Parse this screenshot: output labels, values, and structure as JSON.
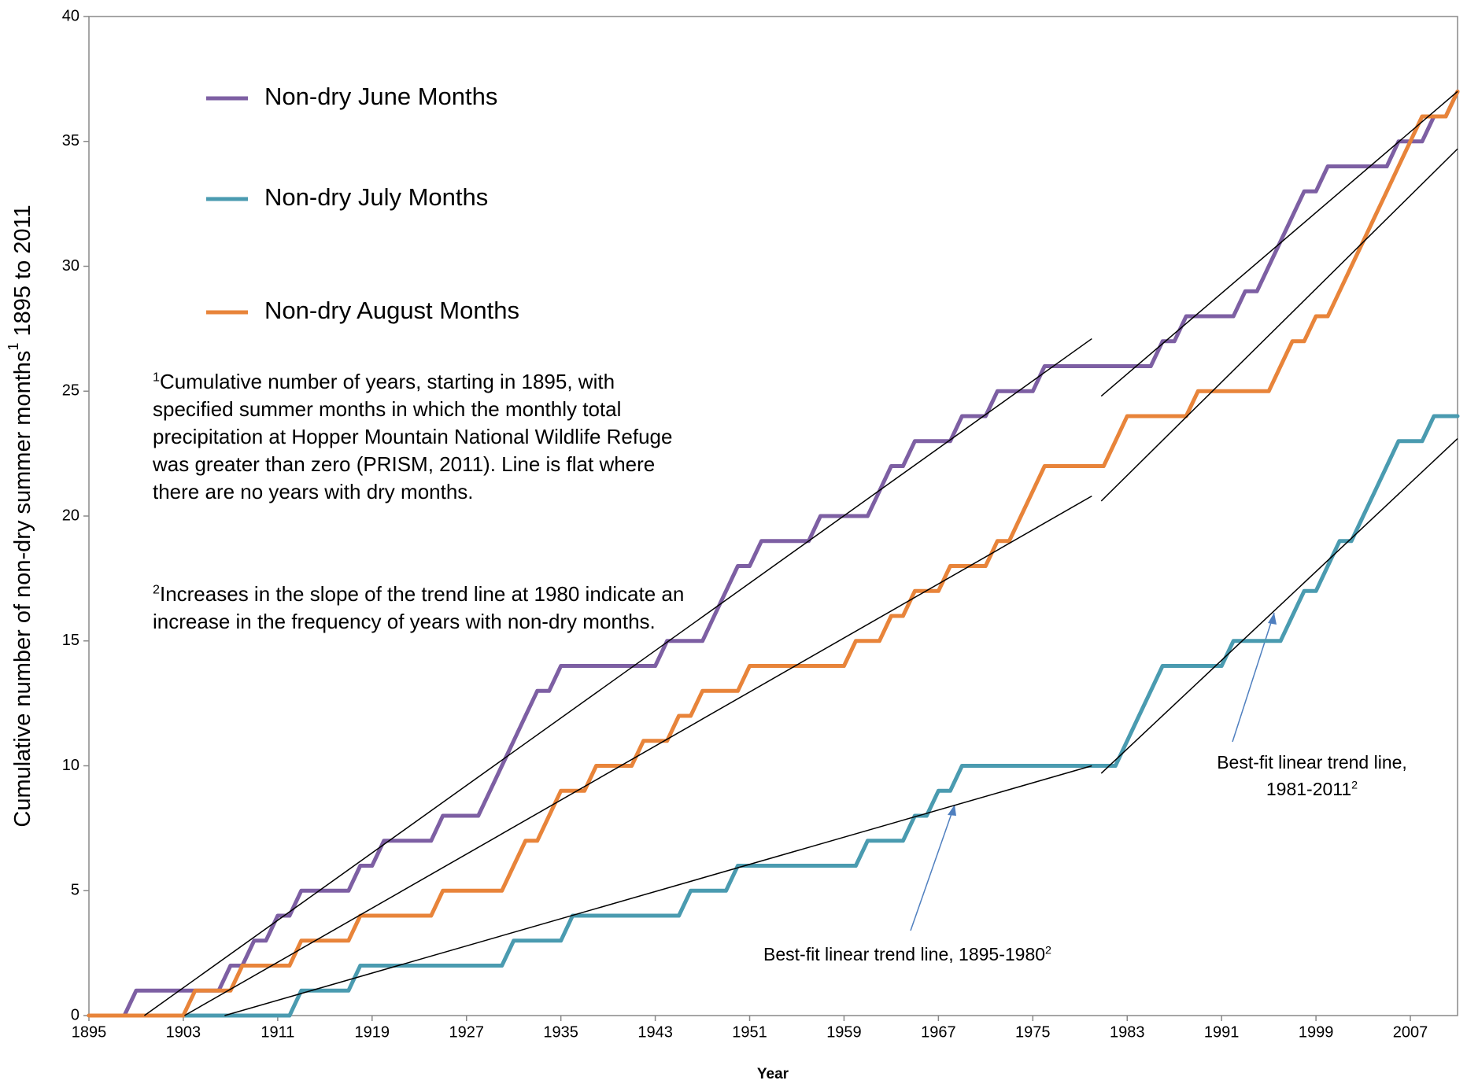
{
  "chart_data": {
    "type": "line",
    "ylabel": {
      "text": "Cumulative number of non-dry summer months",
      "sup": "1",
      "after": " 1895 to 2011"
    },
    "xlabel": "Year",
    "x": [
      1895,
      1896,
      1897,
      1898,
      1899,
      1900,
      1901,
      1902,
      1903,
      1904,
      1905,
      1906,
      1907,
      1908,
      1909,
      1910,
      1911,
      1912,
      1913,
      1914,
      1915,
      1916,
      1917,
      1918,
      1919,
      1920,
      1921,
      1922,
      1923,
      1924,
      1925,
      1926,
      1927,
      1928,
      1929,
      1930,
      1931,
      1932,
      1933,
      1934,
      1935,
      1936,
      1937,
      1938,
      1939,
      1940,
      1941,
      1942,
      1943,
      1944,
      1945,
      1946,
      1947,
      1948,
      1949,
      1950,
      1951,
      1952,
      1953,
      1954,
      1955,
      1956,
      1957,
      1958,
      1959,
      1960,
      1961,
      1962,
      1963,
      1964,
      1965,
      1966,
      1967,
      1968,
      1969,
      1970,
      1971,
      1972,
      1973,
      1974,
      1975,
      1976,
      1977,
      1978,
      1979,
      1980,
      1981,
      1982,
      1983,
      1984,
      1985,
      1986,
      1987,
      1988,
      1989,
      1990,
      1991,
      1992,
      1993,
      1994,
      1995,
      1996,
      1997,
      1998,
      1999,
      2000,
      2001,
      2002,
      2003,
      2004,
      2005,
      2006,
      2007,
      2008,
      2009,
      2010,
      2011
    ],
    "series": [
      {
        "name": "Non-dry June Months",
        "color": "#7d5fa3",
        "values": [
          0,
          0,
          0,
          0,
          1,
          1,
          1,
          1,
          1,
          1,
          1,
          1,
          2,
          2,
          3,
          3,
          4,
          4,
          5,
          5,
          5,
          5,
          5,
          6,
          6,
          7,
          7,
          7,
          7,
          7,
          8,
          8,
          8,
          8,
          9,
          10,
          11,
          12,
          13,
          13,
          14,
          14,
          14,
          14,
          14,
          14,
          14,
          14,
          14,
          15,
          15,
          15,
          15,
          16,
          17,
          18,
          18,
          19,
          19,
          19,
          19,
          19,
          20,
          20,
          20,
          20,
          20,
          21,
          22,
          22,
          23,
          23,
          23,
          23,
          24,
          24,
          24,
          25,
          25,
          25,
          25,
          26,
          26,
          26,
          26,
          26,
          26,
          26,
          26,
          26,
          26,
          27,
          27,
          28,
          28,
          28,
          28,
          28,
          29,
          29,
          30,
          31,
          32,
          33,
          33,
          34,
          34,
          34,
          34,
          34,
          34,
          35,
          35,
          35,
          36,
          36,
          37
        ]
      },
      {
        "name": "Non-dry July Months",
        "color": "#4a9bb0",
        "values": [
          0,
          0,
          0,
          0,
          0,
          0,
          0,
          0,
          0,
          0,
          0,
          0,
          0,
          0,
          0,
          0,
          0,
          0,
          1,
          1,
          1,
          1,
          1,
          2,
          2,
          2,
          2,
          2,
          2,
          2,
          2,
          2,
          2,
          2,
          2,
          2,
          3,
          3,
          3,
          3,
          3,
          4,
          4,
          4,
          4,
          4,
          4,
          4,
          4,
          4,
          4,
          5,
          5,
          5,
          5,
          6,
          6,
          6,
          6,
          6,
          6,
          6,
          6,
          6,
          6,
          6,
          7,
          7,
          7,
          7,
          8,
          8,
          9,
          9,
          10,
          10,
          10,
          10,
          10,
          10,
          10,
          10,
          10,
          10,
          10,
          10,
          10,
          10,
          11,
          12,
          13,
          14,
          14,
          14,
          14,
          14,
          14,
          15,
          15,
          15,
          15,
          15,
          16,
          17,
          17,
          18,
          19,
          19,
          20,
          21,
          22,
          23,
          23,
          23,
          24,
          24,
          24
        ]
      },
      {
        "name": "Non-dry August Months",
        "color": "#e8843a",
        "values": [
          0,
          0,
          0,
          0,
          0,
          0,
          0,
          0,
          0,
          1,
          1,
          1,
          1,
          2,
          2,
          2,
          2,
          2,
          3,
          3,
          3,
          3,
          3,
          4,
          4,
          4,
          4,
          4,
          4,
          4,
          5,
          5,
          5,
          5,
          5,
          5,
          6,
          7,
          7,
          8,
          9,
          9,
          9,
          10,
          10,
          10,
          10,
          11,
          11,
          11,
          12,
          12,
          13,
          13,
          13,
          13,
          14,
          14,
          14,
          14,
          14,
          14,
          14,
          14,
          14,
          15,
          15,
          15,
          16,
          16,
          17,
          17,
          17,
          18,
          18,
          18,
          18,
          19,
          19,
          20,
          21,
          22,
          22,
          22,
          22,
          22,
          22,
          23,
          24,
          24,
          24,
          24,
          24,
          24,
          25,
          25,
          25,
          25,
          25,
          25,
          25,
          26,
          27,
          27,
          28,
          28,
          29,
          30,
          31,
          32,
          33,
          34,
          35,
          36,
          36,
          36,
          37
        ]
      }
    ],
    "trend_color": "#000000",
    "trend_lines": [
      {
        "x": [
          1899.7,
          1980
        ],
        "values": [
          0,
          27.1
        ]
      },
      {
        "x": [
          1903.1,
          1980
        ],
        "values": [
          0,
          20.8
        ]
      },
      {
        "x": [
          1906.5,
          1980
        ],
        "values": [
          0,
          10.0
        ]
      },
      {
        "x": [
          1980.8,
          2011
        ],
        "values": [
          24.8,
          37.0
        ]
      },
      {
        "x": [
          1980.8,
          2011
        ],
        "values": [
          20.6,
          34.7
        ]
      },
      {
        "x": [
          1980.8,
          2011
        ],
        "values": [
          9.7,
          23.1
        ]
      }
    ],
    "xlim": [
      1895,
      2011
    ],
    "xticks": [
      1895,
      1903,
      1911,
      1919,
      1927,
      1935,
      1943,
      1951,
      1959,
      1967,
      1975,
      1983,
      1991,
      1999,
      2007
    ],
    "ylim": [
      0,
      40
    ],
    "yticks": [
      0,
      5,
      10,
      15,
      20,
      25,
      30,
      35,
      40
    ],
    "notes": [
      {
        "sup": "1",
        "text": "Cumulative number of years, starting in 1895, with specified summer months in which the monthly total precipitation at Hopper Mountain National Wildlife Refuge was greater than zero (PRISM, 2011). Line is flat where there are no years with dry months."
      },
      {
        "sup": "2",
        "text": "Increases in the slope of the trend line at 1980 indicate an increase in the frequency of years with non-dry months."
      }
    ],
    "annotations": [
      {
        "text": "Best-fit linear trend line, 1895-1980",
        "sup": "2"
      },
      {
        "text": "Best-fit linear trend line, 1981-2011",
        "sup": "2"
      }
    ]
  }
}
